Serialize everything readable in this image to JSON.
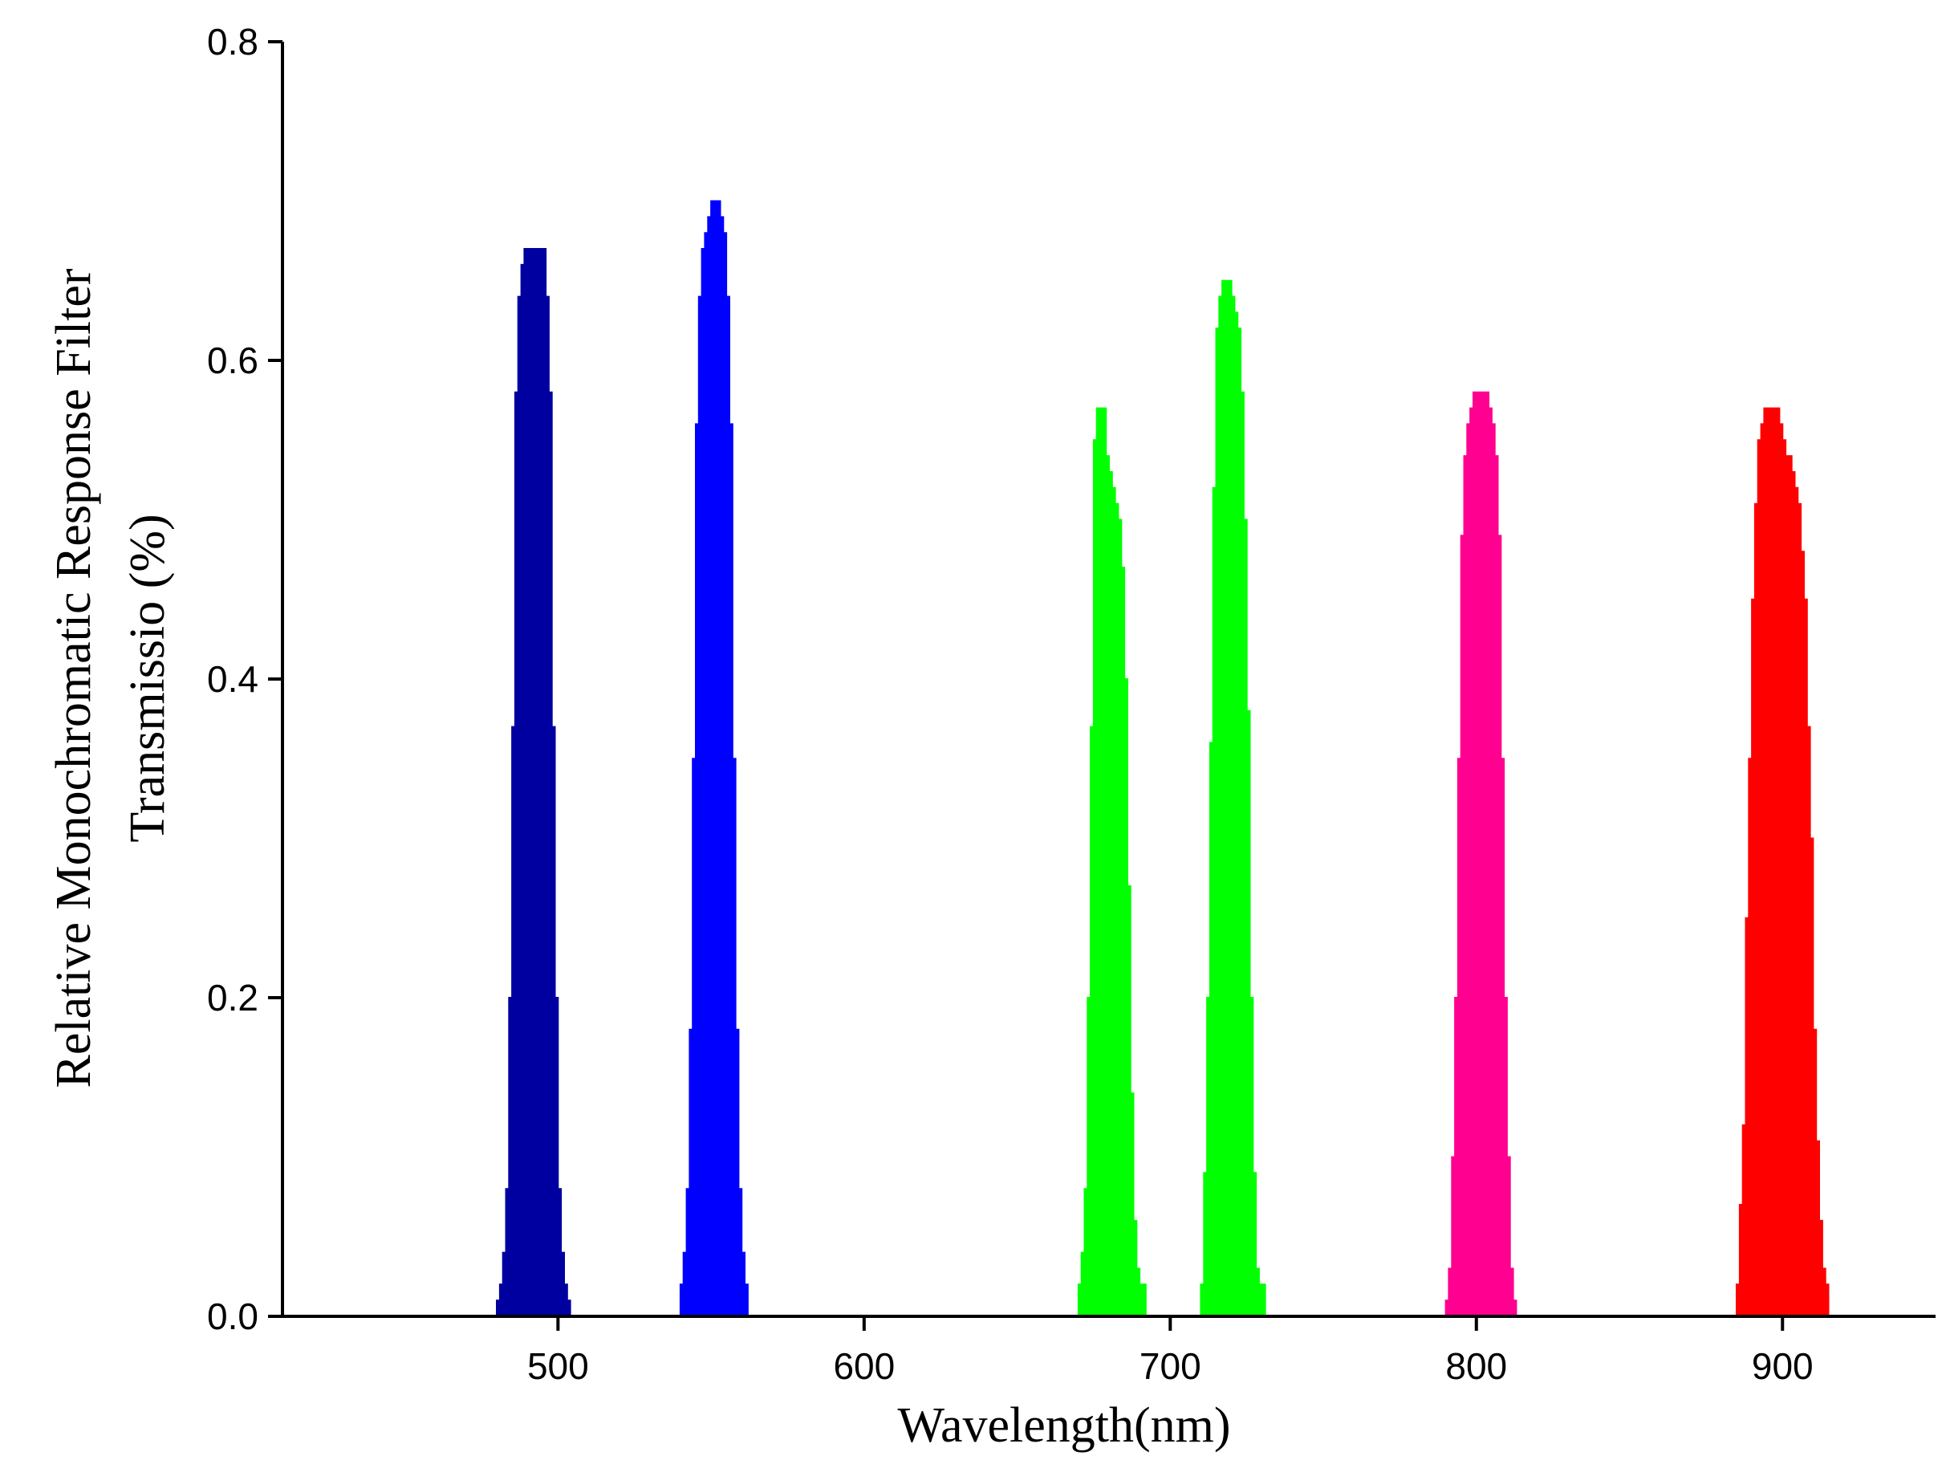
{
  "chart_data": {
    "type": "area",
    "title": "",
    "xlabel": "Wavelength(nm)",
    "ylabel_lines": [
      "Relative Monochromatic Response Filter",
      "Transmissio (%)"
    ],
    "xlim": [
      410,
      950
    ],
    "ylim": [
      0,
      0.8
    ],
    "x_ticks": [
      500,
      600,
      700,
      800,
      900
    ],
    "x_tick_labels": [
      "500",
      "600",
      "700",
      "800",
      "900"
    ],
    "y_ticks": [
      0.0,
      0.2,
      0.4,
      0.6,
      0.8
    ],
    "y_tick_labels": [
      "0.0",
      "0.2",
      "0.4",
      "0.6",
      "0.8"
    ],
    "grid": false,
    "legend": "none",
    "series": [
      {
        "color": "#0000A0",
        "points": [
          [
            479,
            0
          ],
          [
            480,
            0.01
          ],
          [
            481,
            0.02
          ],
          [
            482,
            0.04
          ],
          [
            483,
            0.08
          ],
          [
            484,
            0.2
          ],
          [
            485,
            0.37
          ],
          [
            486,
            0.58
          ],
          [
            487,
            0.64
          ],
          [
            488,
            0.66
          ],
          [
            489,
            0.67
          ],
          [
            495,
            0.67
          ],
          [
            496,
            0.64
          ],
          [
            497,
            0.58
          ],
          [
            498,
            0.37
          ],
          [
            499,
            0.2
          ],
          [
            500,
            0.08
          ],
          [
            501,
            0.04
          ],
          [
            502,
            0.02
          ],
          [
            503,
            0.01
          ],
          [
            504,
            0
          ]
        ]
      },
      {
        "color": "#0000FF",
        "points": [
          [
            539,
            0
          ],
          [
            540,
            0.02
          ],
          [
            541,
            0.04
          ],
          [
            542,
            0.08
          ],
          [
            543,
            0.18
          ],
          [
            544,
            0.35
          ],
          [
            545,
            0.56
          ],
          [
            546,
            0.64
          ],
          [
            547,
            0.67
          ],
          [
            548,
            0.68
          ],
          [
            549,
            0.69
          ],
          [
            550,
            0.7
          ],
          [
            552,
            0.7
          ],
          [
            553,
            0.69
          ],
          [
            554,
            0.68
          ],
          [
            555,
            0.64
          ],
          [
            556,
            0.56
          ],
          [
            557,
            0.35
          ],
          [
            558,
            0.18
          ],
          [
            559,
            0.08
          ],
          [
            560,
            0.04
          ],
          [
            561,
            0.02
          ],
          [
            562,
            0
          ]
        ]
      },
      {
        "color": "#00FF00",
        "points": [
          [
            669,
            0
          ],
          [
            670,
            0.02
          ],
          [
            671,
            0.04
          ],
          [
            672,
            0.08
          ],
          [
            673,
            0.2
          ],
          [
            674,
            0.37
          ],
          [
            675,
            0.55
          ],
          [
            676,
            0.57
          ],
          [
            678,
            0.57
          ],
          [
            679,
            0.54
          ],
          [
            680,
            0.53
          ],
          [
            681,
            0.52
          ],
          [
            682,
            0.51
          ],
          [
            683,
            0.5
          ],
          [
            684,
            0.47
          ],
          [
            685,
            0.4
          ],
          [
            686,
            0.27
          ],
          [
            687,
            0.14
          ],
          [
            688,
            0.06
          ],
          [
            689,
            0.03
          ],
          [
            690,
            0.02
          ],
          [
            692,
            0
          ]
        ]
      },
      {
        "color": "#00FF00",
        "points": [
          [
            709,
            0
          ],
          [
            710,
            0.02
          ],
          [
            711,
            0.09
          ],
          [
            712,
            0.2
          ],
          [
            713,
            0.36
          ],
          [
            714,
            0.52
          ],
          [
            715,
            0.62
          ],
          [
            716,
            0.64
          ],
          [
            717,
            0.65
          ],
          [
            719,
            0.65
          ],
          [
            720,
            0.64
          ],
          [
            721,
            0.63
          ],
          [
            722,
            0.62
          ],
          [
            723,
            0.58
          ],
          [
            724,
            0.5
          ],
          [
            725,
            0.38
          ],
          [
            726,
            0.2
          ],
          [
            727,
            0.09
          ],
          [
            728,
            0.03
          ],
          [
            729,
            0.02
          ],
          [
            731,
            0
          ]
        ]
      },
      {
        "color": "#FF0090",
        "points": [
          [
            789,
            0
          ],
          [
            790,
            0.01
          ],
          [
            791,
            0.03
          ],
          [
            792,
            0.1
          ],
          [
            793,
            0.2
          ],
          [
            794,
            0.35
          ],
          [
            795,
            0.49
          ],
          [
            796,
            0.54
          ],
          [
            797,
            0.56
          ],
          [
            798,
            0.57
          ],
          [
            799,
            0.58
          ],
          [
            803,
            0.58
          ],
          [
            804,
            0.57
          ],
          [
            805,
            0.56
          ],
          [
            806,
            0.54
          ],
          [
            807,
            0.49
          ],
          [
            808,
            0.35
          ],
          [
            809,
            0.2
          ],
          [
            810,
            0.1
          ],
          [
            811,
            0.03
          ],
          [
            812,
            0.01
          ],
          [
            813,
            0
          ]
        ]
      },
      {
        "color": "#FF0000",
        "points": [
          [
            884,
            0
          ],
          [
            885,
            0.02
          ],
          [
            886,
            0.07
          ],
          [
            887,
            0.12
          ],
          [
            888,
            0.25
          ],
          [
            889,
            0.35
          ],
          [
            890,
            0.45
          ],
          [
            891,
            0.51
          ],
          [
            892,
            0.55
          ],
          [
            893,
            0.56
          ],
          [
            894,
            0.57
          ],
          [
            898,
            0.57
          ],
          [
            899,
            0.56
          ],
          [
            900,
            0.55
          ],
          [
            901,
            0.54
          ],
          [
            902,
            0.54
          ],
          [
            903,
            0.53
          ],
          [
            904,
            0.52
          ],
          [
            905,
            0.51
          ],
          [
            906,
            0.48
          ],
          [
            907,
            0.45
          ],
          [
            908,
            0.37
          ],
          [
            909,
            0.3
          ],
          [
            910,
            0.18
          ],
          [
            911,
            0.11
          ],
          [
            912,
            0.06
          ],
          [
            913,
            0.03
          ],
          [
            914,
            0.02
          ],
          [
            915,
            0
          ]
        ]
      }
    ]
  }
}
